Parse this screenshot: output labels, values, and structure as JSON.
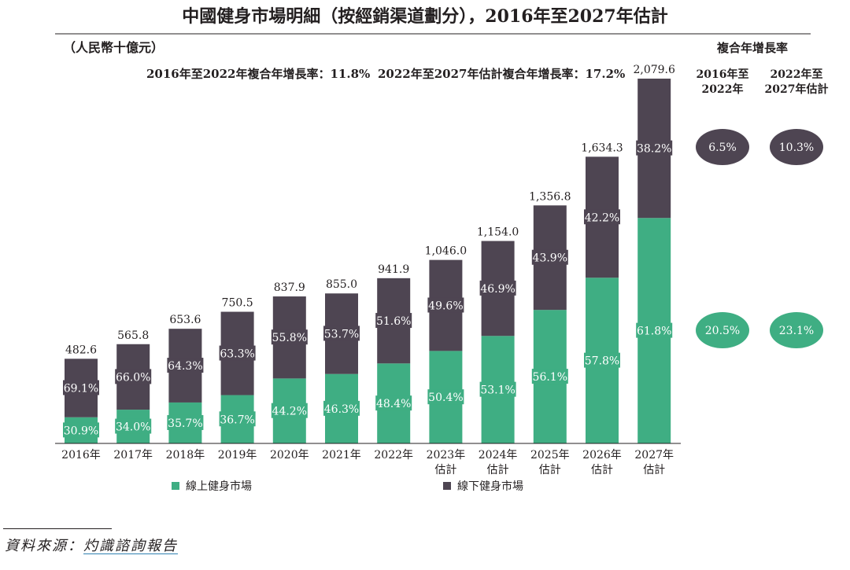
{
  "title": "中國健身市場明細（按經銷渠道劃分），2016年至2027年估計",
  "unit": "（人民幣十億元）",
  "cagr_note_1": "2016年至2022年複合年增長率：11.8%",
  "cagr_note_2": "2022年至2027年估計複合年增長率：17.2%",
  "cagr_table": {
    "header": "複合年增長率",
    "columns": [
      [
        "2016年至",
        "2022年"
      ],
      [
        "2022年至",
        "2027年估計"
      ]
    ],
    "offline": [
      "6.5%",
      "10.3%"
    ],
    "online": [
      "20.5%",
      "23.1%"
    ]
  },
  "source_label": "資料來源：",
  "source_name": "灼識諮詢報告",
  "colors": {
    "online": "#3fae83",
    "offline": "#4e4552",
    "text": "#231f20"
  },
  "chart_data": {
    "type": "bar",
    "stacked": true,
    "categories": [
      [
        "2016年"
      ],
      [
        "2017年"
      ],
      [
        "2018年"
      ],
      [
        "2019年"
      ],
      [
        "2020年"
      ],
      [
        "2021年"
      ],
      [
        "2022年"
      ],
      [
        "2023年",
        "估計"
      ],
      [
        "2024年",
        "估計"
      ],
      [
        "2025年",
        "估計"
      ],
      [
        "2026年",
        "估計"
      ],
      [
        "2027年",
        "估計"
      ]
    ],
    "totals": [
      482.6,
      565.8,
      653.6,
      750.5,
      837.9,
      855.0,
      941.9,
      1046.0,
      1154.0,
      1356.8,
      1634.3,
      2079.6
    ],
    "total_labels": [
      "482.6",
      "565.8",
      "653.6",
      "750.5",
      "837.9",
      "855.0",
      "941.9",
      "1,046.0",
      "1,154.0",
      "1,356.8",
      "1,634.3",
      "2,079.6"
    ],
    "series": [
      {
        "name": "線上健身市場",
        "color": "#3fae83",
        "share_labels": [
          "30.9%",
          "34.0%",
          "35.7%",
          "36.7%",
          "44.2%",
          "46.3%",
          "48.4%",
          "50.4%",
          "53.1%",
          "56.1%",
          "57.8%",
          "61.8%"
        ],
        "share": [
          30.9,
          34.0,
          35.7,
          36.7,
          44.2,
          46.3,
          48.4,
          50.4,
          53.1,
          56.1,
          57.8,
          61.8
        ]
      },
      {
        "name": "線下健身市場",
        "color": "#4e4552",
        "share_labels": [
          "69.1%",
          "66.0%",
          "64.3%",
          "63.3%",
          "55.8%",
          "53.7%",
          "51.6%",
          "49.6%",
          "46.9%",
          "43.9%",
          "42.2%",
          "38.2%"
        ],
        "share": [
          69.1,
          66.0,
          64.3,
          63.3,
          55.8,
          53.7,
          51.6,
          49.6,
          46.9,
          43.9,
          42.2,
          38.2
        ]
      }
    ],
    "ylim": [
      0,
      2079.6
    ],
    "legend": [
      "線上健身市場",
      "線下健身市場"
    ]
  }
}
